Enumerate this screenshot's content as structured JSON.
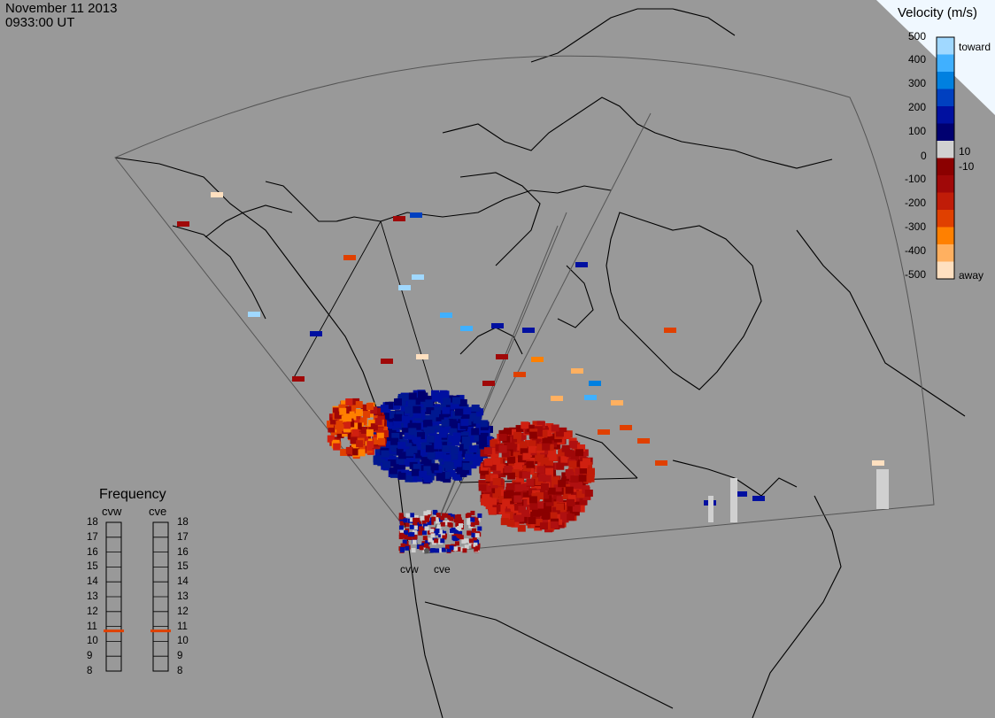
{
  "header": {
    "date": "November 11 2013",
    "time": "0933:00 UT"
  },
  "velocity_scale": {
    "title": "Velocity (m/s)",
    "toward_label": "toward",
    "away_label": "away",
    "tick_labels": [
      "500",
      "400",
      "300",
      "200",
      "100",
      "10",
      "0",
      "-10",
      "-100",
      "-200",
      "-300",
      "-400",
      "-500"
    ],
    "colors": [
      "#ffe0c0",
      "#ffb060",
      "#ff8000",
      "#e04000",
      "#c01c08",
      "#a00808",
      "#8b0000",
      "#d0d0d0",
      "#000070",
      "#0010a0",
      "#0040c0",
      "#0080e0",
      "#40b0ff",
      "#a0d8ff"
    ]
  },
  "frequency": {
    "title": "Frequency",
    "radars": [
      {
        "name": "cvw",
        "value_mhz": 10.7
      },
      {
        "name": "cve",
        "value_mhz": 10.7
      }
    ],
    "ticks": [
      "18",
      "17",
      "16",
      "15",
      "14",
      "13",
      "12",
      "11",
      "10",
      "9",
      "8"
    ],
    "marker_color": "#e04000"
  },
  "radars": [
    {
      "name": "cvw"
    },
    {
      "name": "cve"
    }
  ]
}
